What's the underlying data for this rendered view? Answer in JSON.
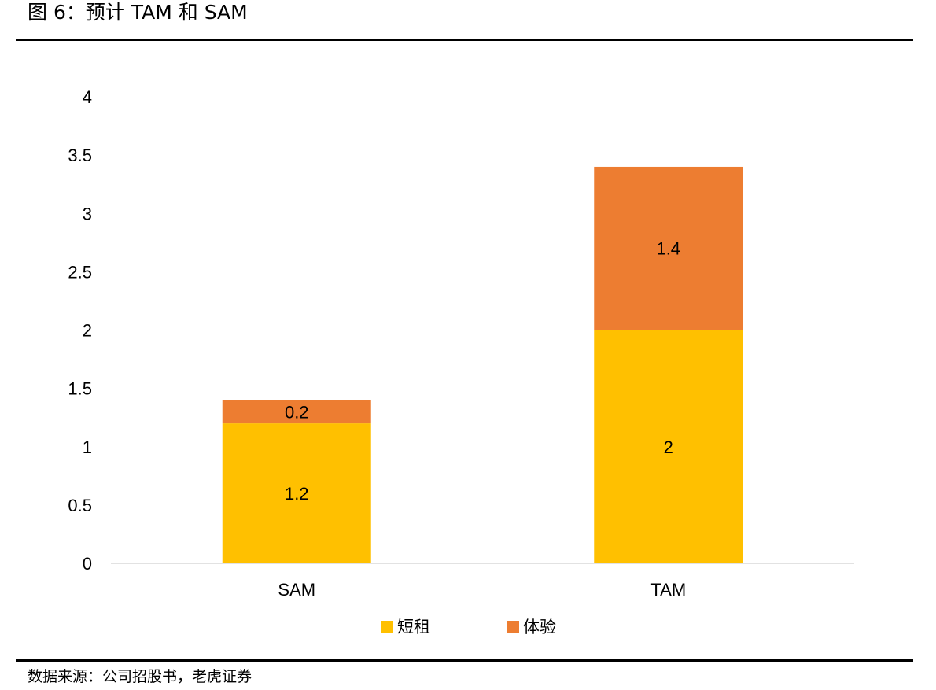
{
  "figure": {
    "title": "图 6：预计 TAM 和 SAM",
    "source": "数据来源：公司招股书，老虎证券"
  },
  "chart_data": {
    "type": "bar",
    "stacked": true,
    "categories": [
      "SAM",
      "TAM"
    ],
    "series": [
      {
        "name": "短租",
        "values": [
          1.2,
          2
        ],
        "color": "#FFC000"
      },
      {
        "name": "体验",
        "values": [
          0.2,
          1.4
        ],
        "color": "#ED7D31"
      }
    ],
    "ylim": [
      0,
      4
    ],
    "yticks": [
      "0",
      "0.5",
      "1",
      "1.5",
      "2",
      "2.5",
      "3",
      "3.5",
      "4"
    ],
    "grid": false,
    "legend_position": "bottom",
    "data_labels": true
  }
}
